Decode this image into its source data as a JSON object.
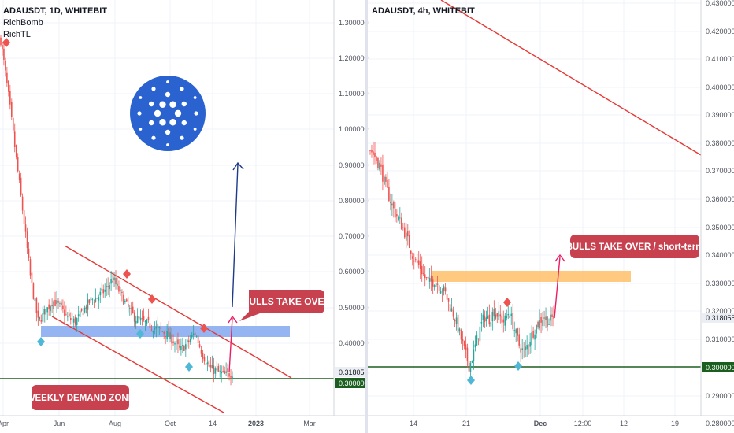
{
  "left_panel": {
    "header": "ADAUSDT, 1D, WHITEBIT",
    "indicators": [
      "RichBomb",
      "RichTL"
    ],
    "price_ticks": [
      "1.300000",
      "1.200000",
      "1.100000",
      "1.000000",
      "0.900000",
      "0.800000",
      "0.700000",
      "0.600000",
      "0.500000",
      "0.400000"
    ],
    "time_ticks": [
      "Apr",
      "Jun",
      "Aug",
      "Oct",
      "14",
      "2023",
      "Mar"
    ],
    "last_price_label": "0.318055",
    "support_label": "0.300000",
    "callout_bulls": "BULLS TAKE OVER",
    "callout_demand": "WEEKLY DEMAND ZONE",
    "logo_icon": "cardano-logo-icon"
  },
  "right_panel": {
    "header": "ADAUSDT, 4h, WHITEBIT",
    "price_ticks": [
      "0.430000",
      "0.420000",
      "0.410000",
      "0.400000",
      "0.390000",
      "0.380000",
      "0.370000",
      "0.360000",
      "0.350000",
      "0.340000",
      "0.330000",
      "0.320000",
      "0.310000",
      "0.290000",
      "0.280000"
    ],
    "time_ticks": [
      "14",
      "21",
      "Dec",
      "12:00",
      "12",
      "19"
    ],
    "last_price_label": "0.318055",
    "support_label": "0.300000",
    "callout_bulls": "BULLS TAKE OVER / short-term"
  },
  "colors": {
    "bull": "#26a69a",
    "bear": "#ef5350",
    "trendline": "#e53935",
    "support": "#1b5e20",
    "demand_zone": "#82a8f0",
    "resistance_zone": "#ffc06a",
    "callout_bg": "#c8414f",
    "logo": "#2a62cf",
    "projection_arrow": "#1e3a8a",
    "pink_arrow": "#e91e63",
    "diamond_red": "#ef5350",
    "diamond_blue": "#4fb8d6"
  },
  "chart_data": [
    {
      "type": "candlestick",
      "title": "ADAUSDT, 1D, WHITEBIT",
      "ylim": [
        0.25,
        1.35
      ],
      "x_range": [
        "Apr",
        "Mar"
      ],
      "support_level": 0.3,
      "last_price": 0.318055,
      "demand_zone": [
        0.415,
        0.445
      ],
      "descending_channel_upper": [
        [
          0.675,
          0.3
        ]
      ],
      "path": [
        1.25,
        1.1,
        0.93,
        0.76,
        0.58,
        0.46,
        0.49,
        0.52,
        0.5,
        0.47,
        0.46,
        0.49,
        0.52,
        0.53,
        0.55,
        0.58,
        0.54,
        0.5,
        0.47,
        0.46,
        0.45,
        0.44,
        0.43,
        0.41,
        0.38,
        0.4,
        0.43,
        0.37,
        0.33,
        0.32,
        0.31,
        0.318
      ]
    },
    {
      "type": "candlestick",
      "title": "ADAUSDT, 4h, WHITEBIT",
      "ylim": [
        0.28,
        0.435
      ],
      "support_level": 0.3,
      "last_price": 0.318055,
      "resistance_zone": [
        0.329,
        0.333
      ],
      "path": [
        0.378,
        0.375,
        0.372,
        0.365,
        0.36,
        0.355,
        0.352,
        0.348,
        0.343,
        0.338,
        0.336,
        0.332,
        0.33,
        0.331,
        0.329,
        0.327,
        0.322,
        0.318,
        0.312,
        0.306,
        0.3,
        0.306,
        0.313,
        0.318,
        0.317,
        0.32,
        0.318,
        0.316,
        0.32,
        0.314,
        0.308,
        0.305,
        0.309,
        0.313,
        0.316,
        0.318,
        0.316,
        0.318
      ]
    }
  ]
}
